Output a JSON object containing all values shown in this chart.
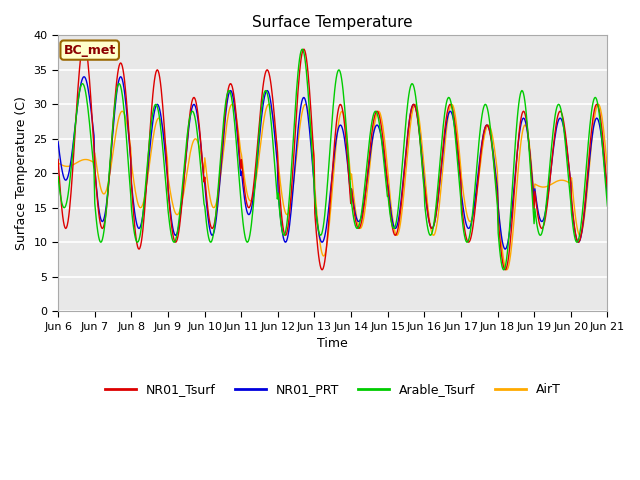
{
  "title": "Surface Temperature",
  "ylabel": "Surface Temperature (C)",
  "xlabel": "Time",
  "annotation": "BC_met",
  "ylim": [
    0,
    40
  ],
  "yticks": [
    0,
    5,
    10,
    15,
    20,
    25,
    30,
    35,
    40
  ],
  "x_labels": [
    "Jun 6",
    "Jun 7",
    "Jun 8",
    "Jun 9",
    "Jun 10",
    "Jun 11",
    "Jun 12",
    "Jun 13",
    "Jun 14",
    "Jun 15",
    "Jun 16",
    "Jun 17",
    "Jun 18",
    "Jun 19",
    "Jun 20",
    "Jun 21"
  ],
  "line_colors": {
    "NR01_Tsurf": "#dd0000",
    "NR01_PRT": "#0000dd",
    "Arable_Tsurf": "#00cc00",
    "AirT": "#ffaa00"
  },
  "bg_color": "#e8e8e8",
  "fig_bg_color": "#ffffff",
  "grid_color": "#ffffff",
  "title_fontsize": 11,
  "label_fontsize": 9,
  "tick_fontsize": 8,
  "linewidth": 1.0
}
